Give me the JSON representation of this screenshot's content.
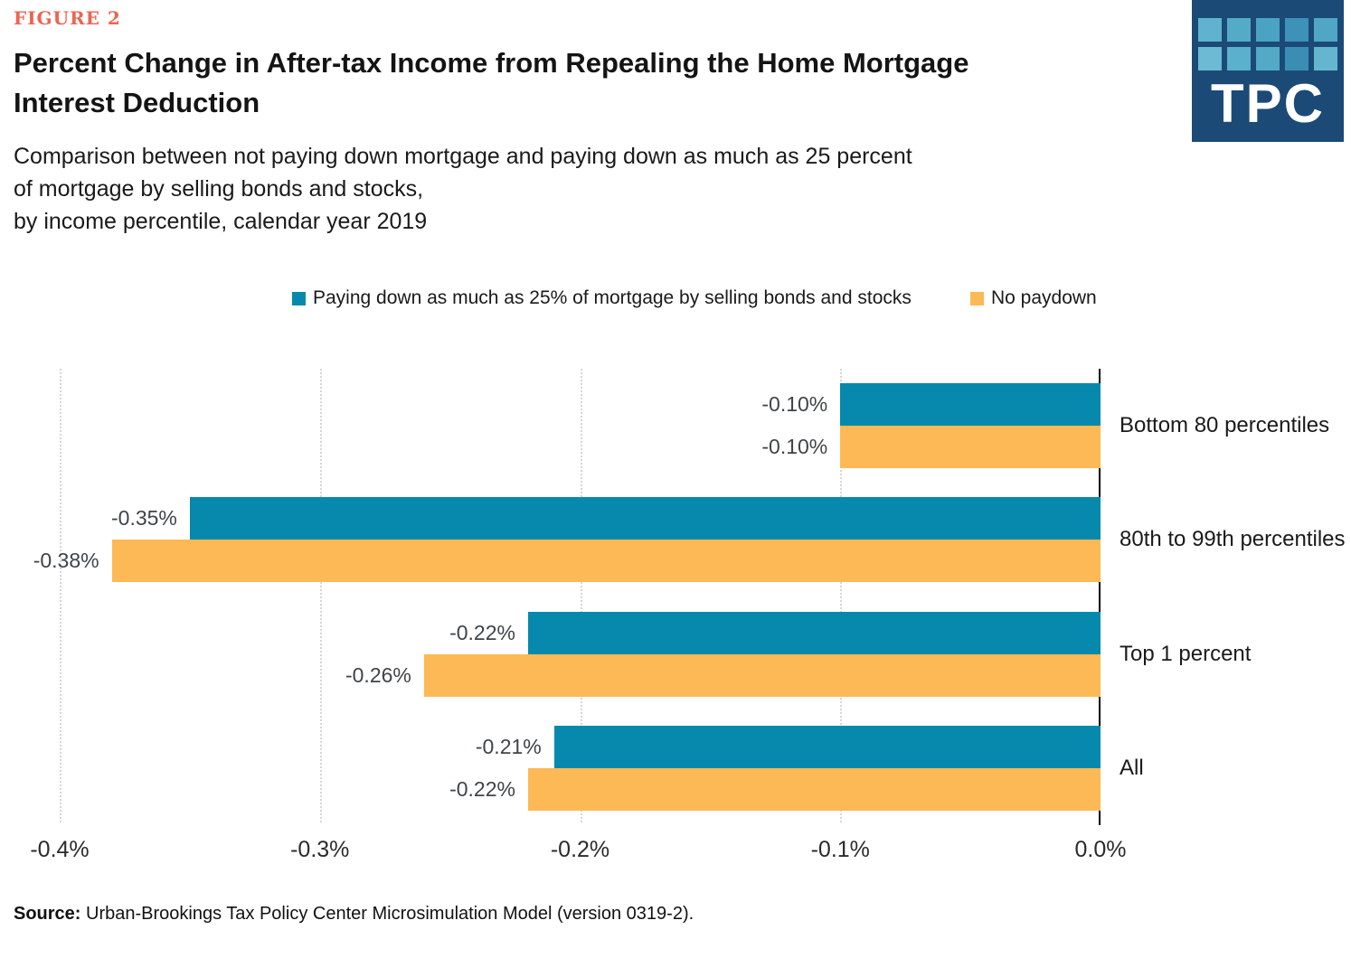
{
  "header": {
    "figure_label": "FIGURE 2",
    "title_lines": [
      "Percent Change in After-tax Income from Repealing the Home Mortgage",
      "Interest Deduction"
    ],
    "subtitle_lines": [
      "Comparison between not paying down mortgage and paying down as much as 25 percent",
      "of mortgage by selling bonds and stocks,",
      "by income percentile, calendar year 2019"
    ]
  },
  "logo": {
    "text": "TPC",
    "background": "#1B4A77",
    "square_colors": [
      "#5FB3CE",
      "#54ABC8",
      "#4AA3C2",
      "#3D92B9",
      "#4FA7C5",
      "#6CBAD3",
      "#5BB0CB",
      "#52AAC7",
      "#3A8EB4",
      "#64B6CF"
    ]
  },
  "chart_data": {
    "type": "bar",
    "orientation": "horizontal",
    "title": "Percent Change in After-tax Income from Repealing the Home Mortgage Interest Deduction",
    "subtitle": "Comparison between not paying down mortgage and paying down as much as 25 percent of mortgage by selling bonds and stocks, by income percentile, calendar year 2019",
    "categories": [
      "Bottom 80 percentiles",
      "80th to 99th percentiles",
      "Top 1 percent",
      "All"
    ],
    "series": [
      {
        "name": "Paying down as much as 25% of mortgage by selling bonds and stocks",
        "color": "#0689AC",
        "values": [
          -0.1,
          -0.35,
          -0.22,
          -0.21
        ],
        "value_labels": [
          "-0.10%",
          "-0.35%",
          "-0.22%",
          "-0.21%"
        ]
      },
      {
        "name": "No paydown",
        "color": "#FCB955",
        "values": [
          -0.1,
          -0.38,
          -0.26,
          -0.22
        ],
        "value_labels": [
          "-0.10%",
          "-0.38%",
          "-0.26%",
          "-0.22%"
        ]
      }
    ],
    "xlim": [
      -0.4,
      0.0
    ],
    "x_ticks": [
      {
        "value": -0.4,
        "label": "-0.4%"
      },
      {
        "value": -0.3,
        "label": "-0.3%"
      },
      {
        "value": -0.2,
        "label": "-0.2%"
      },
      {
        "value": -0.1,
        "label": "-0.1%"
      },
      {
        "value": 0.0,
        "label": "0.0%"
      }
    ],
    "grid": "vertical dotted gridlines",
    "legend_position": "top"
  },
  "source": {
    "label": "Source:",
    "text": " Urban-Brookings Tax Policy Center Microsimulation Model (version 0319-2)."
  }
}
